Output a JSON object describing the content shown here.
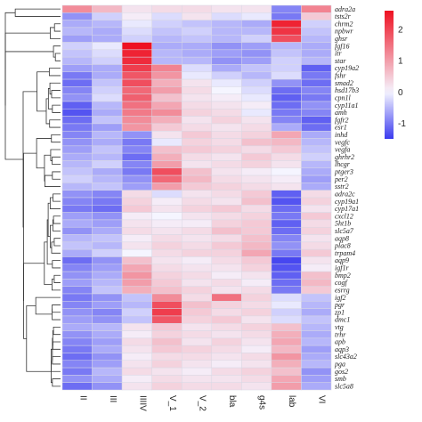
{
  "chart_data": {
    "type": "heatmap",
    "title": "",
    "xlabel": "",
    "ylabel": "",
    "columns": [
      "II",
      "III",
      "IIIIV",
      "V_1",
      "V_2",
      "bla",
      "g4s",
      "lab",
      "VI"
    ],
    "rows": [
      "adra2a",
      "tsts2r",
      "chrm2",
      "npbwr",
      "ghsr",
      "fgf16",
      "itr",
      "star",
      "cyp19a2",
      "fshr",
      "smad2",
      "hsd17b3",
      "cpn1l",
      "cyp11a1",
      "amh",
      "fgfr2",
      "esr1",
      "inhd",
      "vegfc",
      "vegfa",
      "ghrhr2",
      "lhcgr",
      "ptger3",
      "per2",
      "sstr2",
      "adra2c",
      "cyp19a1",
      "cyp17a1",
      "cxcl12",
      "5ht1b",
      "slc5a7",
      "aqp8",
      "plac8",
      "trpam4",
      "aqp9",
      "igf1r",
      "bmp2",
      "cogf",
      "esrrg",
      "igf2",
      "pgr",
      "zp1",
      "dmc1",
      "vtg",
      "trhr",
      "apb",
      "aqp3",
      "slc43a2",
      "pga",
      "gos2",
      "smb",
      "slc5a8"
    ],
    "values": [
      [
        1.2,
        0.7,
        0.2,
        0.3,
        0.3,
        0.2,
        0.2,
        -0.9,
        1.3
      ],
      [
        -0.8,
        -0.3,
        0.1,
        -0.2,
        0.2,
        -0.2,
        -0.1,
        -1.0,
        0.5
      ],
      [
        -0.6,
        -0.5,
        -0.1,
        -0.3,
        -0.4,
        -0.5,
        -0.6,
        2.4,
        -0.3
      ],
      [
        -0.5,
        -0.6,
        -0.2,
        -0.4,
        -0.3,
        -0.5,
        -0.5,
        2.2,
        -0.4
      ],
      [
        -0.7,
        -0.6,
        -0.3,
        -0.5,
        -0.4,
        -0.5,
        -0.3,
        1.9,
        -0.5
      ],
      [
        -0.3,
        -0.1,
        2.6,
        -0.6,
        -0.6,
        -0.8,
        -0.7,
        -0.5,
        -0.6
      ],
      [
        -0.4,
        -0.2,
        2.4,
        -0.5,
        -0.6,
        -0.7,
        -0.8,
        -0.4,
        -0.6
      ],
      [
        -0.5,
        -0.3,
        2.3,
        -0.5,
        -0.5,
        -0.8,
        -0.7,
        -0.3,
        -0.5
      ],
      [
        -0.7,
        -0.6,
        2.1,
        1.3,
        -0.2,
        -0.6,
        -0.4,
        -0.3,
        -1.2
      ],
      [
        -1.0,
        -0.6,
        1.8,
        1.1,
        -0.1,
        -0.3,
        -0.5,
        -0.2,
        -1.0
      ],
      [
        -1.1,
        -0.4,
        1.9,
        0.8,
        0.2,
        -0.1,
        -0.3,
        -0.8,
        -1.1
      ],
      [
        -0.9,
        -0.3,
        1.6,
        1.0,
        0.3,
        0.0,
        -0.2,
        -1.1,
        -0.9
      ],
      [
        -0.8,
        -0.2,
        1.7,
        0.6,
        0.2,
        0.1,
        -0.1,
        -1.2,
        -1.0
      ],
      [
        -1.2,
        -0.5,
        1.5,
        0.9,
        0.3,
        0.2,
        0.1,
        -1.1,
        -0.8
      ],
      [
        -1.3,
        -0.6,
        1.4,
        1.2,
        0.4,
        0.3,
        -0.1,
        -1.0,
        -0.9
      ],
      [
        -1.1,
        -0.4,
        1.2,
        0.8,
        0.2,
        0.4,
        0.2,
        -0.9,
        -1.2
      ],
      [
        -1.0,
        -0.7,
        1.1,
        0.5,
        0.3,
        0.2,
        0.3,
        -0.6,
        -1.1
      ],
      [
        -0.9,
        -0.5,
        -0.8,
        0.2,
        0.5,
        0.3,
        0.4,
        0.9,
        -0.6
      ],
      [
        -0.8,
        -0.6,
        -1.0,
        -0.1,
        0.4,
        0.3,
        0.6,
        0.7,
        -0.5
      ],
      [
        -0.7,
        -0.4,
        -0.9,
        0.6,
        0.5,
        0.4,
        0.3,
        0.5,
        -0.4
      ],
      [
        -0.6,
        -0.5,
        -1.1,
        0.8,
        0.3,
        0.2,
        0.5,
        0.3,
        -0.3
      ],
      [
        -0.5,
        -0.3,
        -0.9,
        1.0,
        0.2,
        0.3,
        0.4,
        0.2,
        -0.5
      ],
      [
        -0.4,
        -0.6,
        -1.0,
        1.9,
        0.6,
        0.2,
        0.1,
        0.0,
        -0.6
      ],
      [
        -0.3,
        -0.5,
        -0.8,
        1.6,
        0.7,
        0.3,
        0.2,
        0.1,
        -0.7
      ],
      [
        -0.5,
        -0.4,
        -0.7,
        1.0,
        0.5,
        0.4,
        0.3,
        0.2,
        -0.6
      ],
      [
        -0.8,
        -0.9,
        0.3,
        -0.2,
        0.2,
        0.3,
        0.5,
        -1.2,
        0.3
      ],
      [
        -0.9,
        -1.0,
        0.4,
        0.1,
        0.3,
        0.2,
        0.6,
        -1.3,
        0.4
      ],
      [
        -1.0,
        -1.1,
        0.5,
        0.2,
        0.4,
        0.5,
        0.3,
        -1.1,
        0.2
      ],
      [
        -0.7,
        -0.8,
        0.1,
        0.0,
        0.2,
        0.3,
        0.4,
        -1.0,
        0.5
      ],
      [
        -0.6,
        -0.7,
        0.2,
        0.1,
        0.1,
        0.4,
        0.5,
        -1.2,
        0.3
      ],
      [
        -0.8,
        -0.6,
        0.3,
        0.2,
        0.3,
        0.6,
        0.5,
        -1.1,
        0.4
      ],
      [
        -0.5,
        -0.4,
        0.1,
        0.3,
        0.2,
        0.3,
        0.6,
        -0.9,
        0.2
      ],
      [
        -0.4,
        -0.5,
        0.2,
        0.4,
        0.3,
        0.5,
        0.7,
        -0.8,
        0.3
      ],
      [
        -0.6,
        -0.3,
        0.0,
        0.3,
        0.4,
        0.4,
        0.9,
        -1.0,
        0.5
      ],
      [
        -1.1,
        -0.8,
        0.6,
        0.2,
        0.1,
        0.3,
        0.5,
        -1.4,
        0.2
      ],
      [
        -0.9,
        -0.7,
        0.9,
        0.3,
        0.2,
        0.2,
        0.4,
        -1.3,
        0.1
      ],
      [
        -0.8,
        -0.6,
        1.1,
        0.4,
        0.3,
        0.1,
        0.2,
        -1.2,
        0.6
      ],
      [
        -0.7,
        -0.5,
        1.0,
        0.5,
        0.2,
        0.3,
        0.1,
        -1.1,
        0.7
      ],
      [
        -0.9,
        -0.4,
        0.8,
        0.6,
        0.4,
        0.2,
        0.3,
        -1.0,
        0.5
      ],
      [
        -1.0,
        -0.8,
        -0.4,
        1.2,
        0.3,
        1.5,
        0.4,
        -0.2,
        -0.4
      ],
      [
        -0.9,
        -0.7,
        -0.5,
        1.9,
        0.6,
        0.4,
        0.3,
        -0.1,
        -0.5
      ],
      [
        -0.8,
        -0.9,
        -0.3,
        2.1,
        0.5,
        0.3,
        0.4,
        -0.3,
        -0.6
      ],
      [
        -0.7,
        -0.8,
        -0.4,
        1.8,
        0.4,
        0.5,
        0.2,
        -0.2,
        -0.4
      ],
      [
        -0.6,
        -0.5,
        0.2,
        0.5,
        0.2,
        0.3,
        0.4,
        0.6,
        -0.5
      ],
      [
        -0.8,
        -0.6,
        0.1,
        0.4,
        0.3,
        0.2,
        0.3,
        0.8,
        -0.6
      ],
      [
        -0.9,
        -0.7,
        0.3,
        0.6,
        0.2,
        0.4,
        0.2,
        0.9,
        -0.5
      ],
      [
        -1.0,
        -0.6,
        0.2,
        0.5,
        0.4,
        0.3,
        0.1,
        0.7,
        -0.7
      ],
      [
        -1.1,
        -0.8,
        0.1,
        0.3,
        0.3,
        0.2,
        0.3,
        1.1,
        -0.6
      ],
      [
        -0.9,
        -0.7,
        0.2,
        0.4,
        0.2,
        0.1,
        0.2,
        0.8,
        -0.5
      ],
      [
        -1.0,
        -0.5,
        0.3,
        0.2,
        0.1,
        0.3,
        0.4,
        0.6,
        -0.8
      ],
      [
        -0.8,
        -0.6,
        0.1,
        0.3,
        0.2,
        0.2,
        0.3,
        0.9,
        -0.7
      ],
      [
        -1.1,
        -0.8,
        0.2,
        0.4,
        0.3,
        0.3,
        0.2,
        1.0,
        -0.6
      ]
    ],
    "color_scale": {
      "low": "#3b3bef",
      "mid": "#f5f5ff",
      "high": "#ee1122"
    },
    "legend": {
      "ticks": [
        2,
        1,
        0,
        -1
      ],
      "range": [
        -1.5,
        2.6
      ]
    }
  }
}
